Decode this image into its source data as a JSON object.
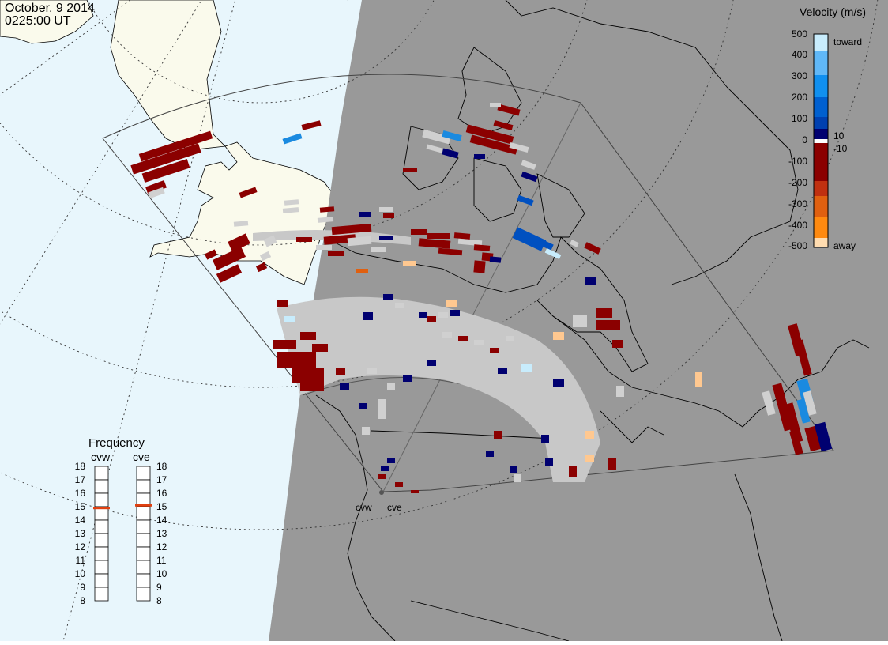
{
  "header": {
    "date": "October, 9 2014",
    "time": "0225:00 UT"
  },
  "velocity_legend": {
    "title": "Velocity (m/s)",
    "ticks": [
      "500",
      "400",
      "300",
      "200",
      "100",
      "0",
      "-100",
      "-200",
      "-300",
      "-400",
      "-500"
    ],
    "small_pos": "10",
    "small_neg": "-10",
    "toward_label": "toward",
    "away_label": "away",
    "colors": [
      "#ffdcb0",
      "#ffb060",
      "#ff8a10",
      "#e06010",
      "#c03010",
      "#8b0000",
      "#000070",
      "#0040b0",
      "#0060d0",
      "#1090f0",
      "#60b8f8",
      "#c8ecfc"
    ]
  },
  "frequency_panel": {
    "title": "Frequency",
    "radars": [
      {
        "name": "cvw",
        "frequency_mhz": 14.9
      },
      {
        "name": "cve",
        "frequency_mhz": 15.1
      }
    ],
    "ticks": [
      "18",
      "17",
      "16",
      "15",
      "14",
      "13",
      "12",
      "11",
      "10",
      "9",
      "8"
    ],
    "indicator_color": "#e04010"
  },
  "map": {
    "ocean_color": "#e8f6fc",
    "land_color": "#fafaec",
    "night_color": "#999999",
    "low_power_color": "#c8c8c8",
    "site_labels": [
      "cvw",
      "cve"
    ]
  }
}
